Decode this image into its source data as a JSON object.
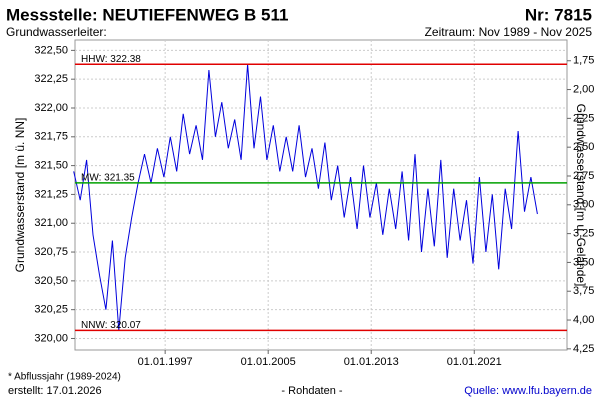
{
  "chart_data": {
    "type": "line",
    "title": "Messstelle: NEUTIEFENWEG B 511",
    "number": "Nr: 7815",
    "subtitle_left": "Grundwasserleiter:",
    "subtitle_right": "Zeitraum: Nov 1989 - Nov 2025",
    "y_label": "Grundwasserstand [m ü. NN]",
    "y2_label": "Grundwasserstand [m u. Gelände]",
    "footnote": "* Abflussjahr (1989-2024)",
    "created": "erstellt:  17.01.2026",
    "data_note": "- Rohdaten -",
    "source": "Quelle:  www.lfu.bayern.de",
    "xlim": [
      1990.0,
      2028.2
    ],
    "xticks": [
      {
        "value": 1997,
        "label": "01.01.1997"
      },
      {
        "value": 2005,
        "label": "01.01.2005"
      },
      {
        "value": 2013,
        "label": "01.01.2013"
      },
      {
        "value": 2021,
        "label": "01.01.2021"
      }
    ],
    "ylim": [
      319.9,
      322.59
    ],
    "yticks": [
      {
        "value": 320.0,
        "label": "320,00"
      },
      {
        "value": 320.25,
        "label": "320,25"
      },
      {
        "value": 320.5,
        "label": "320,50"
      },
      {
        "value": 320.75,
        "label": "320,75"
      },
      {
        "value": 321.0,
        "label": "321,00"
      },
      {
        "value": 321.25,
        "label": "321,25"
      },
      {
        "value": 321.5,
        "label": "321,50"
      },
      {
        "value": 321.75,
        "label": "321,75"
      },
      {
        "value": 322.0,
        "label": "322,00"
      },
      {
        "value": 322.25,
        "label": "322,25"
      },
      {
        "value": 322.5,
        "label": "322,50"
      }
    ],
    "y2lim": [
      1.57,
      4.26
    ],
    "y2_inverted": true,
    "y2ticks": [
      {
        "value": 1.75,
        "label": "1,75"
      },
      {
        "value": 2.0,
        "label": "2,00"
      },
      {
        "value": 2.25,
        "label": "2,25"
      },
      {
        "value": 2.5,
        "label": "2,50"
      },
      {
        "value": 2.75,
        "label": "2,75"
      },
      {
        "value": 3.0,
        "label": "3,00"
      },
      {
        "value": 3.25,
        "label": "3,25"
      },
      {
        "value": 3.5,
        "label": "3,50"
      },
      {
        "value": 3.75,
        "label": "3,75"
      },
      {
        "value": 4.0,
        "label": "4,00"
      },
      {
        "value": 4.25,
        "label": "4,25"
      }
    ],
    "grid": true,
    "reference_lines": [
      {
        "value": 322.38,
        "label": "HHW: 322.38",
        "color": "#e00000"
      },
      {
        "value": 321.35,
        "label": "MW: 321.35",
        "color": "#00a000"
      },
      {
        "value": 320.07,
        "label": "NNW: 320.07",
        "color": "#e00000"
      }
    ],
    "series": [
      {
        "color": "#0000dd",
        "x": [
          1989.9,
          1990.4,
          1990.9,
          1991.4,
          1991.9,
          1992.4,
          1992.9,
          1993.4,
          1993.9,
          1994.4,
          1994.9,
          1995.4,
          1995.9,
          1996.4,
          1996.9,
          1997.4,
          1997.9,
          1998.4,
          1998.9,
          1999.4,
          1999.9,
          2000.4,
          2000.9,
          2001.4,
          2001.9,
          2002.4,
          2002.9,
          2003.4,
          2003.9,
          2004.4,
          2004.9,
          2005.4,
          2005.9,
          2006.4,
          2006.9,
          2007.4,
          2007.9,
          2008.4,
          2008.9,
          2009.4,
          2009.9,
          2010.4,
          2010.9,
          2011.4,
          2011.9,
          2012.4,
          2012.9,
          2013.4,
          2013.9,
          2014.4,
          2014.9,
          2015.4,
          2015.9,
          2016.4,
          2016.9,
          2017.4,
          2017.9,
          2018.4,
          2018.9,
          2019.4,
          2019.9,
          2020.4,
          2020.9,
          2021.4,
          2021.9,
          2022.4,
          2022.9,
          2023.4,
          2023.9,
          2024.4,
          2024.9,
          2025.4,
          2025.9
        ],
        "values": [
          321.45,
          321.2,
          321.55,
          320.9,
          320.55,
          320.25,
          320.85,
          320.07,
          320.7,
          321.05,
          321.35,
          321.6,
          321.35,
          321.65,
          321.4,
          321.75,
          321.45,
          321.95,
          321.6,
          321.85,
          321.55,
          322.33,
          321.75,
          322.05,
          321.65,
          321.9,
          321.55,
          322.38,
          321.65,
          322.1,
          321.55,
          321.85,
          321.45,
          321.75,
          321.45,
          321.85,
          321.4,
          321.65,
          321.3,
          321.7,
          321.2,
          321.5,
          321.05,
          321.4,
          320.95,
          321.5,
          321.05,
          321.35,
          320.9,
          321.3,
          320.95,
          321.45,
          320.85,
          321.6,
          320.75,
          321.3,
          320.8,
          321.55,
          320.7,
          321.3,
          320.85,
          321.2,
          320.65,
          321.4,
          320.75,
          321.25,
          320.6,
          321.3,
          320.95,
          321.8,
          321.1,
          321.4,
          321.08
        ]
      }
    ]
  }
}
